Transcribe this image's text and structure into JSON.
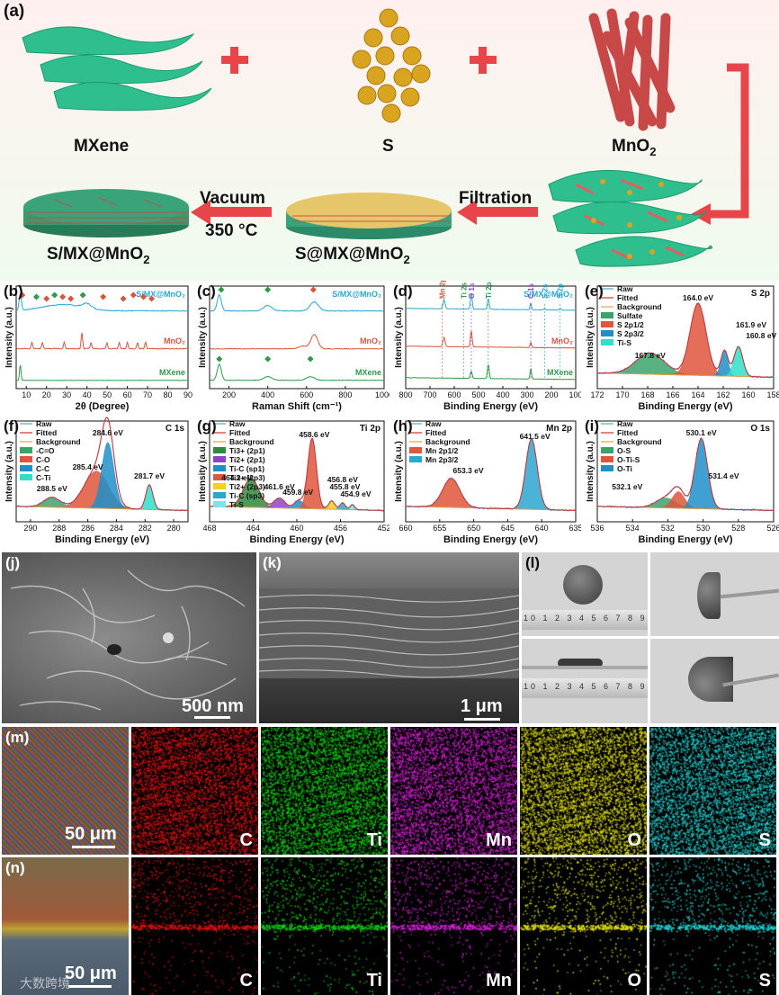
{
  "panel_a": {
    "label": "(a)",
    "mxene": "MXene",
    "s": "S",
    "mno2_base": "MnO",
    "mno2_sub": "2",
    "filtration": "Filtration",
    "vacuum": "Vacuum",
    "temp": "350 °C",
    "smx_product": "S/MX@MnO",
    "smx_product_sub": "2",
    "smxm_product": "S@MX@MnO",
    "smxm_product_sub": "2",
    "colors": {
      "mxene": "#2fbf8f",
      "sulfur": "#d9a520",
      "mno2": "#e06060",
      "arrow": "#e8454a"
    }
  },
  "panel_labels": {
    "b": "(b)",
    "c": "(c)",
    "d": "(d)",
    "e": "(e)",
    "f": "(f)",
    "g": "(g)",
    "h": "(h)",
    "i": "(i)",
    "j": "(j)",
    "k": "(k)",
    "l": "(l)",
    "m": "(m)",
    "n": "(n)"
  },
  "chart_data": [
    {
      "id": "b",
      "type": "line",
      "xlabel": "2θ (Degree)",
      "ylabel": "Intensity (a.u.)",
      "xlim": [
        5,
        90
      ],
      "xticks": [
        10,
        20,
        30,
        40,
        50,
        60,
        70,
        80,
        90
      ],
      "series": [
        {
          "name": "S/MX@MnO2",
          "color": "#2aa6cf"
        },
        {
          "name": "MnO2",
          "color": "#d6553e"
        },
        {
          "name": "MXene",
          "color": "#2e9a4a"
        }
      ]
    },
    {
      "id": "c",
      "type": "line",
      "xlabel": "Raman Shift (cm⁻¹)",
      "ylabel": "Intensity (a.u.)",
      "xlim": [
        100,
        1000
      ],
      "xticks": [
        200,
        400,
        600,
        800,
        1000
      ],
      "series": [
        {
          "name": "S/MX@MnO2",
          "color": "#2aa6cf"
        },
        {
          "name": "MnO2",
          "color": "#d6553e"
        },
        {
          "name": "MXene",
          "color": "#2e9a4a"
        }
      ]
    },
    {
      "id": "d",
      "type": "line",
      "xlabel": "Binding Energy (eV)",
      "ylabel": "Intensity (a.u.)",
      "xlim": [
        800,
        100
      ],
      "xticks": [
        800,
        700,
        600,
        500,
        400,
        300,
        200,
        100
      ],
      "series": [
        {
          "name": "S/MX@MnO2",
          "color": "#2aa6cf"
        },
        {
          "name": "MnO2",
          "color": "#d6553e"
        },
        {
          "name": "MXene",
          "color": "#2e9a4a"
        }
      ],
      "annotations": [
        "Mn 2p",
        "Ti 2s",
        "O 1s",
        "Ti 2p",
        "C 1s",
        "S 2s",
        "S 2p"
      ]
    },
    {
      "id": "e",
      "type": "area",
      "xlabel": "Binding Energy (eV)",
      "ylabel": "Intensity (a.u.)",
      "xlim": [
        172,
        158
      ],
      "xticks": [
        172,
        170,
        168,
        166,
        164,
        162,
        160,
        158
      ],
      "title": "S 2p",
      "legend": [
        "Raw",
        "Fitted",
        "Background",
        "Sulfate",
        "S 2p1/2",
        "S 2p3/2",
        "Ti-S"
      ],
      "peaks": [
        {
          "label": "167.8 eV",
          "center": 167.8,
          "color": "#3aa36a"
        },
        {
          "label": "164.0 eV",
          "center": 164.0,
          "color": "#e0553c"
        },
        {
          "label": "161.9 eV",
          "center": 161.9,
          "color": "#1e8fc9"
        },
        {
          "label": "160.8 eV",
          "center": 160.8,
          "color": "#2fe0c8"
        }
      ]
    },
    {
      "id": "f",
      "type": "area",
      "xlabel": "Binding Energy (eV)",
      "ylabel": "Intensity (a.u.)",
      "xlim": [
        291,
        279
      ],
      "xticks": [
        290,
        288,
        286,
        284,
        282,
        280
      ],
      "title": "C 1s",
      "legend": [
        "Raw",
        "Fitted",
        "Background",
        "-C=O",
        "C-O",
        "C-C",
        "C-Ti"
      ],
      "peaks": [
        {
          "label": "288.5 eV",
          "center": 288.5,
          "color": "#3aa36a"
        },
        {
          "label": "285.4 eV",
          "center": 285.4,
          "color": "#e0553c"
        },
        {
          "label": "284.6 eV",
          "center": 284.6,
          "color": "#1e8fc9"
        },
        {
          "label": "281.7 eV",
          "center": 281.7,
          "color": "#2fe0c8"
        }
      ]
    },
    {
      "id": "g",
      "type": "area",
      "xlabel": "Binding Energy (eV)",
      "ylabel": "Intensity (a.u.)",
      "xlim": [
        468,
        452
      ],
      "xticks": [
        468,
        464,
        460,
        456,
        452
      ],
      "title": "Ti 2p",
      "legend": [
        "Raw",
        "Fitted",
        "Background",
        "Ti3+ (2p1)",
        "Ti2+ (2p1)",
        "Ti-C (sp1)",
        "Ti3+ (2p3)",
        "Ti2+ (2p3)",
        "Ti-C (sp3)",
        "Ti-S"
      ],
      "peaks": [
        {
          "label": "464.2 eV",
          "center": 464.2,
          "color": "#2e8a3c"
        },
        {
          "label": "461.6 eV",
          "center": 461.6,
          "color": "#8e44c9"
        },
        {
          "label": "459.8 eV",
          "center": 459.8,
          "color": "#1e8fc9"
        },
        {
          "label": "458.6 eV",
          "center": 458.6,
          "color": "#e0553c"
        },
        {
          "label": "456.8 eV",
          "center": 456.8,
          "color": "#f0d020"
        },
        {
          "label": "455.8 eV",
          "center": 455.8,
          "color": "#2aa6cf"
        },
        {
          "label": "454.9 eV",
          "center": 454.9,
          "color": "#7fe0f0"
        }
      ]
    },
    {
      "id": "h",
      "type": "area",
      "xlabel": "Binding Energy (eV)",
      "ylabel": "Intensity (a.u.)",
      "xlim": [
        660,
        635
      ],
      "xticks": [
        660,
        655,
        650,
        645,
        640,
        635
      ],
      "title": "Mn 2p",
      "legend": [
        "Raw",
        "Fitted",
        "Background",
        "Mn 2p1/2",
        "Mn 2p3/2"
      ],
      "peaks": [
        {
          "label": "653.3 eV",
          "center": 653.3,
          "color": "#e0553c"
        },
        {
          "label": "641.5 eV",
          "center": 641.5,
          "color": "#2aa6cf"
        }
      ]
    },
    {
      "id": "i",
      "type": "area",
      "xlabel": "Binding Energy (eV)",
      "ylabel": "Intensity (a.u.)",
      "xlim": [
        536,
        526
      ],
      "xticks": [
        536,
        534,
        532,
        530,
        528,
        526
      ],
      "title": "O 1s",
      "legend": [
        "Raw",
        "Fitted",
        "Background",
        "O-S",
        "O-Ti-S",
        "O-Ti"
      ],
      "peaks": [
        {
          "label": "532.1 eV",
          "center": 532.1,
          "color": "#3aa36a"
        },
        {
          "label": "531.4 eV",
          "center": 531.4,
          "color": "#e0553c"
        },
        {
          "label": "530.1 eV",
          "center": 530.1,
          "color": "#1e8fc9"
        }
      ]
    }
  ],
  "micrographs": {
    "j_scale": "500 nm",
    "k_scale": "1 μm",
    "m_scale": "50 μm",
    "n_scale": "50 μm",
    "ruler_digits": "10 1 2 3 4 5 6 7 8 9"
  },
  "eds_maps": [
    {
      "element": "C",
      "color": "#e01010"
    },
    {
      "element": "Ti",
      "color": "#10d010"
    },
    {
      "element": "Mn",
      "color": "#d020d0"
    },
    {
      "element": "O",
      "color": "#e0e010"
    },
    {
      "element": "S",
      "color": "#20d0d0"
    }
  ],
  "watermark": "大数跨境"
}
